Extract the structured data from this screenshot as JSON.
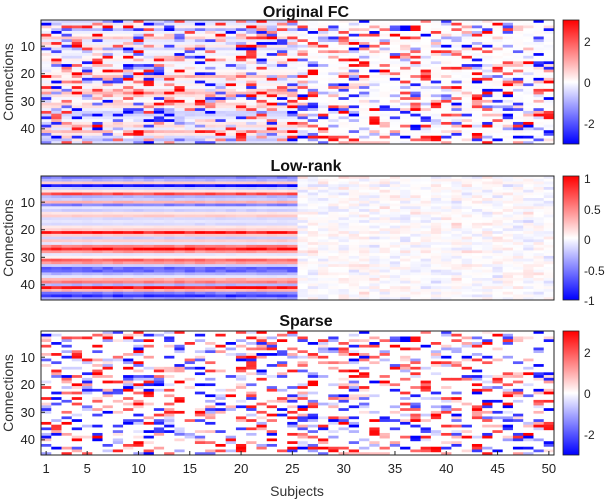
{
  "chart_data": [
    {
      "type": "heatmap",
      "title": "Original FC",
      "ylabel": "Connections",
      "xlabel": "",
      "x_range": [
        1,
        50
      ],
      "y_range": [
        1,
        45
      ],
      "y_ticks": [
        "10",
        "20",
        "30",
        "40"
      ],
      "x_ticks": [],
      "colormap": [
        "#0000ff",
        "#ffffff",
        "#ff0000"
      ],
      "clim": [
        -3,
        3
      ],
      "colorbar_ticks": [
        "2",
        "0",
        "-2"
      ],
      "colorbar_tick_values": [
        2,
        0,
        -2
      ],
      "description_of_values": "random-like scattered values across all 50 subjects"
    },
    {
      "type": "heatmap",
      "title": "Low-rank",
      "ylabel": "Connections",
      "xlabel": "",
      "x_range": [
        1,
        50
      ],
      "y_range": [
        1,
        45
      ],
      "y_ticks": [
        "10",
        "20",
        "30",
        "40"
      ],
      "x_ticks": [],
      "colormap": [
        "#0000ff",
        "#ffffff",
        "#ff0000"
      ],
      "clim": [
        -1,
        1
      ],
      "colorbar_ticks": [
        "1",
        "0.5",
        "0",
        "-0.5",
        "-1"
      ],
      "colorbar_tick_values": [
        1,
        0.5,
        0,
        -0.5,
        -1
      ],
      "row_pattern_subjects_1_25": [
        -0.5,
        -0.3,
        0.2,
        -1,
        -0.2,
        0.1,
        0.7,
        -0.3,
        -0.2,
        0.3,
        -0.5,
        -0.1,
        -0.2,
        0.1,
        0.2,
        -0.15,
        -0.1,
        -0.15,
        0.1,
        0.2,
        0.9,
        0.2,
        -0.2,
        0.2,
        -0.1,
        0.5,
        0.9,
        0.4,
        -0.1,
        0.05,
        0.6,
        0.4,
        -0.2,
        -0.6,
        -0.6,
        -0.3,
        -0.1,
        0.3,
        0.5,
        -0.3,
        0.9,
        0.3,
        -0.5,
        -0.8,
        -0.4
      ]
    },
    {
      "type": "heatmap",
      "title": "Sparse",
      "ylabel": "Connections",
      "xlabel": "Subjects",
      "x_range": [
        1,
        50
      ],
      "y_range": [
        1,
        45
      ],
      "y_ticks": [
        "10",
        "20",
        "30",
        "40"
      ],
      "x_ticks": [
        "1",
        "5",
        "10",
        "15",
        "20",
        "25",
        "30",
        "35",
        "40",
        "45",
        "50"
      ],
      "x_tick_values": [
        1,
        5,
        10,
        15,
        20,
        25,
        30,
        35,
        40,
        45,
        50
      ],
      "colormap": [
        "#0000ff",
        "#ffffff",
        "#ff0000"
      ],
      "clim": [
        -3,
        3
      ],
      "colorbar_ticks": [
        "2",
        "0",
        "-2"
      ],
      "colorbar_tick_values": [
        2,
        0,
        -2
      ]
    }
  ]
}
